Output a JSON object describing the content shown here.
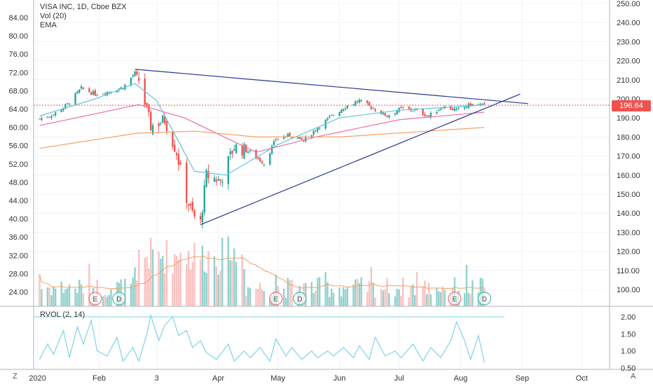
{
  "header": {
    "title": "VISA INC, 1D, Cboe BZX",
    "volume_label": "Vol (20)",
    "ema_label": "EMA"
  },
  "rvol_label": "RVOL (2, 14)",
  "current_price_tag": "196.64",
  "bottom_corners": {
    "left": "Z",
    "right": "A"
  },
  "colors": {
    "up": "#26a69a",
    "down": "#ef5350",
    "ema_fast": "#5fc6dc",
    "ema_slow": "#f5a061",
    "ema_mid": "#f06ea9",
    "trendline": "#2b3595",
    "rvol": "#7fd3e6"
  },
  "chart_data": [
    {
      "type": "candlestick",
      "title": "VISA INC, 1D, Cboe BZX",
      "y_left_ticks": [
        "84.00",
        "80.00",
        "76.00",
        "72.00",
        "68.00",
        "64.00",
        "60.00",
        "56.00",
        "52.00",
        "48.00",
        "44.00",
        "40.00",
        "36.00",
        "32.00",
        "28.00",
        "24.00"
      ],
      "y_right_ticks": [
        "250.00",
        "240.00",
        "230.00",
        "220.00",
        "210.00",
        "200.00",
        "190.00",
        "180.00",
        "170.00",
        "160.00",
        "150.00",
        "140.00",
        "130.00",
        "120.00",
        "110.00",
        "100.00"
      ],
      "ylim": [
        95,
        252
      ],
      "x_ticks": [
        "2020",
        "Feb",
        "3",
        "Apr",
        "May",
        "Jun",
        "Jul",
        "Aug",
        "Sep",
        "Oct"
      ],
      "x_tick_dates": [
        "2020-01-01",
        "2020-02-01",
        "2020-03-01",
        "2020-04-01",
        "2020-05-01",
        "2020-06-01",
        "2020-07-01",
        "2020-08-01",
        "2020-09-01",
        "2020-10-01"
      ],
      "xlim": [
        "2019-12-30",
        "2020-10-15"
      ],
      "price_line": 196.64,
      "close_series": [
        {
          "date": "2020-01-02",
          "close": 189.5
        },
        {
          "date": "2020-01-09",
          "close": 191.8
        },
        {
          "date": "2020-01-16",
          "close": 197.2
        },
        {
          "date": "2020-01-23",
          "close": 205.5
        },
        {
          "date": "2020-01-30",
          "close": 202.5
        },
        {
          "date": "2020-02-06",
          "close": 203.8
        },
        {
          "date": "2020-02-13",
          "close": 206.0
        },
        {
          "date": "2020-02-19",
          "close": 213.5
        },
        {
          "date": "2020-02-21",
          "close": 210.0
        },
        {
          "date": "2020-02-27",
          "close": 185.5
        },
        {
          "date": "2020-03-05",
          "close": 189.0
        },
        {
          "date": "2020-03-11",
          "close": 172.0
        },
        {
          "date": "2020-03-16",
          "close": 148.0
        },
        {
          "date": "2020-03-18",
          "close": 142.0
        },
        {
          "date": "2020-03-20",
          "close": 138.0
        },
        {
          "date": "2020-03-23",
          "close": 135.0
        },
        {
          "date": "2020-03-26",
          "close": 160.0
        },
        {
          "date": "2020-04-02",
          "close": 157.0
        },
        {
          "date": "2020-04-09",
          "close": 175.0
        },
        {
          "date": "2020-04-17",
          "close": 172.0
        },
        {
          "date": "2020-04-24",
          "close": 166.0
        },
        {
          "date": "2020-04-30",
          "close": 179.0
        },
        {
          "date": "2020-05-07",
          "close": 181.0
        },
        {
          "date": "2020-05-14",
          "close": 178.0
        },
        {
          "date": "2020-05-21",
          "close": 185.0
        },
        {
          "date": "2020-05-28",
          "close": 191.0
        },
        {
          "date": "2020-06-04",
          "close": 196.0
        },
        {
          "date": "2020-06-11",
          "close": 199.0
        },
        {
          "date": "2020-06-18",
          "close": 195.0
        },
        {
          "date": "2020-06-25",
          "close": 191.0
        },
        {
          "date": "2020-07-02",
          "close": 195.0
        },
        {
          "date": "2020-07-09",
          "close": 194.0
        },
        {
          "date": "2020-07-16",
          "close": 191.0
        },
        {
          "date": "2020-07-23",
          "close": 196.0
        },
        {
          "date": "2020-07-30",
          "close": 194.0
        },
        {
          "date": "2020-08-06",
          "close": 197.0
        },
        {
          "date": "2020-08-13",
          "close": 196.64
        }
      ],
      "ema_fast": [
        {
          "date": "2020-01-02",
          "v": 191
        },
        {
          "date": "2020-01-30",
          "v": 200
        },
        {
          "date": "2020-02-19",
          "v": 208
        },
        {
          "date": "2020-03-01",
          "v": 199
        },
        {
          "date": "2020-03-20",
          "v": 162
        },
        {
          "date": "2020-04-05",
          "v": 160
        },
        {
          "date": "2020-05-01",
          "v": 176
        },
        {
          "date": "2020-06-01",
          "v": 190
        },
        {
          "date": "2020-07-01",
          "v": 194
        },
        {
          "date": "2020-08-01",
          "v": 196
        },
        {
          "date": "2020-08-13",
          "v": 197
        }
      ],
      "ema_mid": [
        {
          "date": "2020-01-02",
          "v": 186
        },
        {
          "date": "2020-02-21",
          "v": 197
        },
        {
          "date": "2020-03-15",
          "v": 190
        },
        {
          "date": "2020-04-20",
          "v": 172
        },
        {
          "date": "2020-05-20",
          "v": 180
        },
        {
          "date": "2020-07-01",
          "v": 189
        },
        {
          "date": "2020-08-13",
          "v": 193
        }
      ],
      "ema_slow": [
        {
          "date": "2020-01-02",
          "v": 174
        },
        {
          "date": "2020-02-20",
          "v": 182
        },
        {
          "date": "2020-03-20",
          "v": 183
        },
        {
          "date": "2020-04-20",
          "v": 180
        },
        {
          "date": "2020-06-01",
          "v": 180
        },
        {
          "date": "2020-07-15",
          "v": 183
        },
        {
          "date": "2020-08-13",
          "v": 185
        }
      ],
      "trendlines": [
        {
          "from": {
            "date": "2020-02-19",
            "price": 215.5
          },
          "to": {
            "date": "2020-09-04",
            "price": 197.5
          }
        },
        {
          "from": {
            "date": "2020-03-23",
            "price": 134.0
          },
          "to": {
            "date": "2020-08-31",
            "price": 202.5
          }
        }
      ],
      "event_markers": [
        {
          "label": "E",
          "date": "2020-01-30"
        },
        {
          "label": "D",
          "date": "2020-02-11"
        },
        {
          "label": "E",
          "date": "2020-04-30"
        },
        {
          "label": "D",
          "date": "2020-05-12"
        },
        {
          "label": "E",
          "date": "2020-07-29"
        },
        {
          "label": "D",
          "date": "2020-08-13"
        }
      ]
    },
    {
      "type": "line",
      "title": "RVOL (2, 14)",
      "y_ticks": [
        "2.00",
        "1.50",
        "1.00",
        "0.50"
      ],
      "ylim": [
        0.45,
        2.1
      ],
      "reference_line": 2.0,
      "values": [
        {
          "date": "2020-01-02",
          "v": 0.75
        },
        {
          "date": "2020-01-06",
          "v": 1.2
        },
        {
          "date": "2020-01-09",
          "v": 0.9
        },
        {
          "date": "2020-01-14",
          "v": 1.6
        },
        {
          "date": "2020-01-17",
          "v": 0.8
        },
        {
          "date": "2020-01-21",
          "v": 1.7
        },
        {
          "date": "2020-01-24",
          "v": 1.2
        },
        {
          "date": "2020-01-28",
          "v": 1.9
        },
        {
          "date": "2020-01-31",
          "v": 1.0
        },
        {
          "date": "2020-02-05",
          "v": 0.85
        },
        {
          "date": "2020-02-10",
          "v": 1.4
        },
        {
          "date": "2020-02-13",
          "v": 0.7
        },
        {
          "date": "2020-02-18",
          "v": 1.1
        },
        {
          "date": "2020-02-21",
          "v": 0.7
        },
        {
          "date": "2020-02-25",
          "v": 1.5
        },
        {
          "date": "2020-02-27",
          "v": 2.05
        },
        {
          "date": "2020-03-02",
          "v": 1.3
        },
        {
          "date": "2020-03-05",
          "v": 1.75
        },
        {
          "date": "2020-03-09",
          "v": 2.0
        },
        {
          "date": "2020-03-12",
          "v": 1.45
        },
        {
          "date": "2020-03-16",
          "v": 1.6
        },
        {
          "date": "2020-03-19",
          "v": 1.1
        },
        {
          "date": "2020-03-23",
          "v": 1.3
        },
        {
          "date": "2020-03-26",
          "v": 0.95
        },
        {
          "date": "2020-03-31",
          "v": 0.75
        },
        {
          "date": "2020-04-06",
          "v": 1.2
        },
        {
          "date": "2020-04-09",
          "v": 0.7
        },
        {
          "date": "2020-04-14",
          "v": 1.0
        },
        {
          "date": "2020-04-17",
          "v": 0.8
        },
        {
          "date": "2020-04-22",
          "v": 1.1
        },
        {
          "date": "2020-04-27",
          "v": 0.7
        },
        {
          "date": "2020-04-30",
          "v": 1.35
        },
        {
          "date": "2020-05-05",
          "v": 0.85
        },
        {
          "date": "2020-05-08",
          "v": 1.1
        },
        {
          "date": "2020-05-13",
          "v": 0.75
        },
        {
          "date": "2020-05-18",
          "v": 1.0
        },
        {
          "date": "2020-05-21",
          "v": 0.8
        },
        {
          "date": "2020-05-26",
          "v": 1.0
        },
        {
          "date": "2020-05-29",
          "v": 0.85
        },
        {
          "date": "2020-06-03",
          "v": 1.1
        },
        {
          "date": "2020-06-08",
          "v": 0.8
        },
        {
          "date": "2020-06-11",
          "v": 1.15
        },
        {
          "date": "2020-06-16",
          "v": 0.75
        },
        {
          "date": "2020-06-19",
          "v": 1.4
        },
        {
          "date": "2020-06-24",
          "v": 0.85
        },
        {
          "date": "2020-06-29",
          "v": 1.0
        },
        {
          "date": "2020-07-02",
          "v": 0.8
        },
        {
          "date": "2020-07-08",
          "v": 1.2
        },
        {
          "date": "2020-07-13",
          "v": 0.7
        },
        {
          "date": "2020-07-17",
          "v": 1.1
        },
        {
          "date": "2020-07-22",
          "v": 0.8
        },
        {
          "date": "2020-07-27",
          "v": 1.3
        },
        {
          "date": "2020-07-30",
          "v": 1.85
        },
        {
          "date": "2020-08-03",
          "v": 1.3
        },
        {
          "date": "2020-08-06",
          "v": 0.75
        },
        {
          "date": "2020-08-10",
          "v": 1.45
        },
        {
          "date": "2020-08-13",
          "v": 0.65
        }
      ]
    }
  ]
}
